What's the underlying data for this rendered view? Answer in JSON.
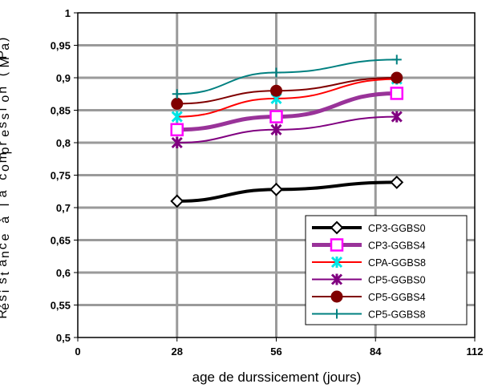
{
  "chart_data": {
    "type": "line",
    "title": "",
    "xlabel": "age de durssicement (jours)",
    "ylabel": "Résistance à la compression (MPa)",
    "xlim": [
      0,
      112
    ],
    "ylim": [
      0.5,
      1
    ],
    "x_ticks": [
      0,
      28,
      56,
      84,
      112
    ],
    "y_ticks": [
      "0,5",
      "0,55",
      "0,6",
      "0,65",
      "0,7",
      "0,75",
      "0,8",
      "0,85",
      "0,9",
      "0,95",
      "1"
    ],
    "grid": true,
    "legend_position": "lower-right",
    "x": [
      28,
      56,
      90
    ],
    "series": [
      {
        "name": "CP3-GGBS0",
        "values": [
          0.71,
          0.728,
          0.739
        ],
        "color": "#000000",
        "marker": "diamond-open",
        "width": 4
      },
      {
        "name": "CP3-GGBS4",
        "values": [
          0.82,
          0.84,
          0.876
        ],
        "color": "#993399",
        "marker": "square-open-magenta",
        "width": 5
      },
      {
        "name": "CPA-GGBS8",
        "values": [
          0.84,
          0.868,
          0.898
        ],
        "color": "#ff0000",
        "marker": "star-cyan",
        "width": 2
      },
      {
        "name": "CP5-GGBS0",
        "values": [
          0.8,
          0.82,
          0.84
        ],
        "color": "#800080",
        "marker": "x-star",
        "width": 2
      },
      {
        "name": "CP5-GGBS4",
        "values": [
          0.86,
          0.88,
          0.9
        ],
        "color": "#800000",
        "marker": "circle-filled",
        "width": 2
      },
      {
        "name": "CP5-GGBS8",
        "values": [
          0.875,
          0.908,
          0.928
        ],
        "color": "#008080",
        "marker": "plus",
        "width": 2
      }
    ]
  }
}
